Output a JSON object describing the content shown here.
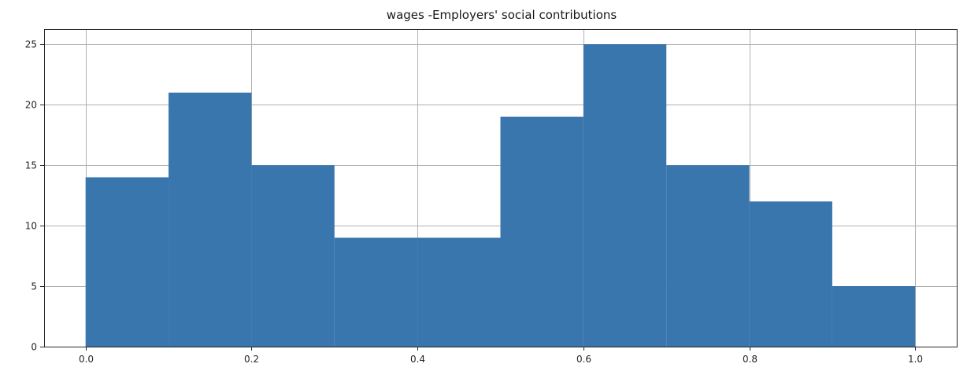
{
  "chart_data": {
    "type": "bar",
    "title": "wages -Employers' social contributions",
    "xlabel": "",
    "ylabel": "",
    "bins": [
      {
        "x0": 0.0,
        "x1": 0.1,
        "count": 14
      },
      {
        "x0": 0.1,
        "x1": 0.2,
        "count": 21
      },
      {
        "x0": 0.2,
        "x1": 0.3,
        "count": 15
      },
      {
        "x0": 0.3,
        "x1": 0.4,
        "count": 9
      },
      {
        "x0": 0.4,
        "x1": 0.5,
        "count": 9
      },
      {
        "x0": 0.5,
        "x1": 0.6,
        "count": 19
      },
      {
        "x0": 0.6,
        "x1": 0.7,
        "count": 25
      },
      {
        "x0": 0.7,
        "x1": 0.8,
        "count": 15
      },
      {
        "x0": 0.8,
        "x1": 0.9,
        "count": 12
      },
      {
        "x0": 0.9,
        "x1": 1.0,
        "count": 5
      }
    ],
    "xlim": [
      -0.05,
      1.05
    ],
    "ylim": [
      0,
      26.25
    ],
    "xticks": [
      0.0,
      0.2,
      0.4,
      0.6,
      0.8,
      1.0
    ],
    "xtick_labels": [
      "0.0",
      "0.2",
      "0.4",
      "0.6",
      "0.8",
      "1.0"
    ],
    "yticks": [
      0,
      5,
      10,
      15,
      20,
      25
    ],
    "ytick_labels": [
      "0",
      "5",
      "10",
      "15",
      "20",
      "25"
    ],
    "grid": true,
    "colors": {
      "bar": "#3a76ae",
      "grid": "#b0b0b0",
      "axis": "#262626"
    }
  }
}
